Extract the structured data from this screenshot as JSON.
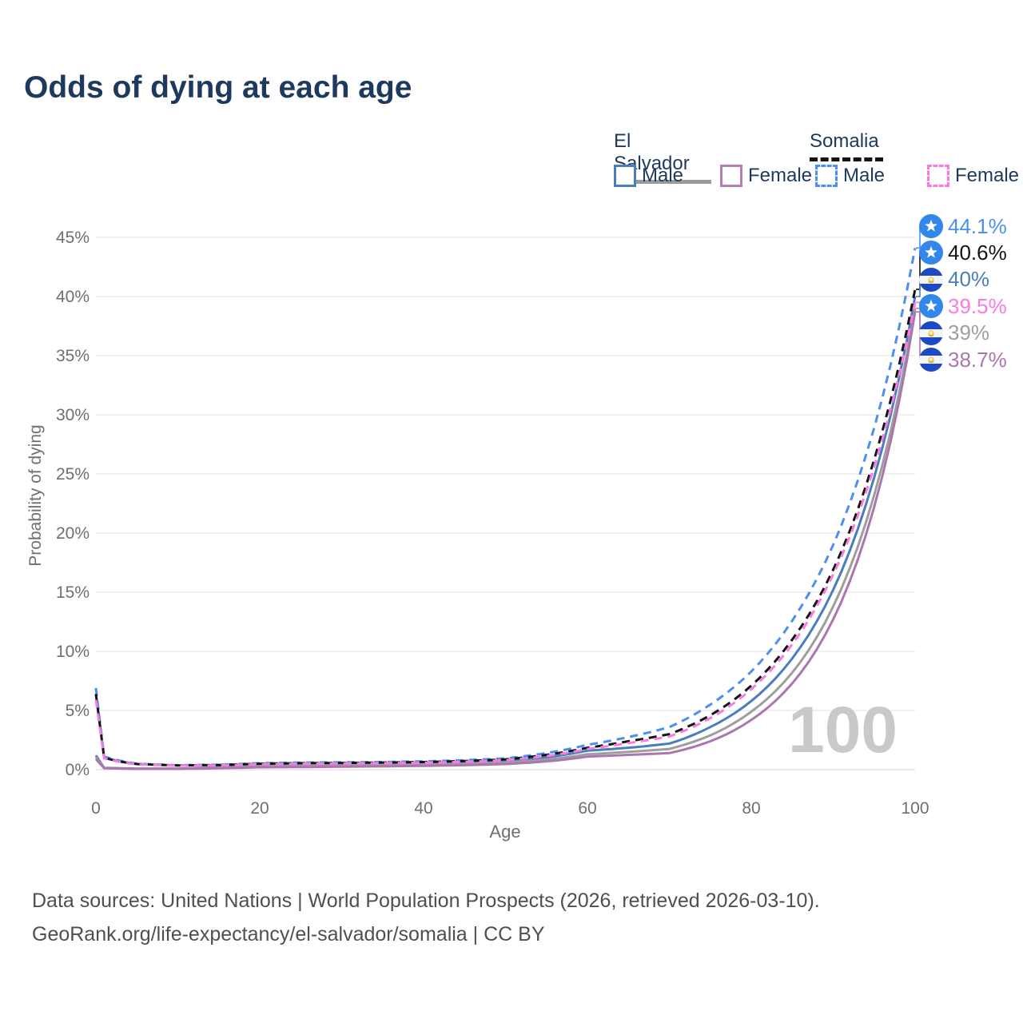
{
  "title": "Odds of dying at each age",
  "legend": {
    "groups": [
      {
        "name": "El Salvador",
        "style": "solid",
        "items": [
          {
            "label": "Male",
            "color": "#4a7dbd"
          },
          {
            "label": "Female",
            "color": "#b57fb5"
          }
        ]
      },
      {
        "name": "Somalia",
        "style": "dashed",
        "items": [
          {
            "label": "Male",
            "color": "#4a90f4"
          },
          {
            "label": "Female",
            "color": "#fb7ae0"
          }
        ]
      }
    ]
  },
  "chart_data": {
    "type": "line",
    "title": "Odds of dying at each age",
    "xlabel": "Age",
    "ylabel": "Probability of dying",
    "xlim": [
      0,
      100
    ],
    "ylim": [
      0,
      45
    ],
    "xticks": [
      0,
      20,
      40,
      60,
      80,
      100
    ],
    "yticks": [
      0,
      5,
      10,
      15,
      20,
      25,
      30,
      35,
      40,
      45
    ],
    "ytick_suffix": "%",
    "grid": true,
    "legend_position": "top-right",
    "watermark": "100",
    "x": [
      0,
      1,
      5,
      10,
      15,
      20,
      25,
      30,
      35,
      40,
      45,
      50,
      55,
      60,
      65,
      70,
      75,
      80,
      85,
      90,
      95,
      100
    ],
    "series": [
      {
        "name": "Somalia Male",
        "country": "somalia",
        "style": "dashed",
        "color": "#4a90f4",
        "end_label": "44.1%",
        "values": [
          6.9,
          1.1,
          0.5,
          0.38,
          0.42,
          0.55,
          0.6,
          0.62,
          0.65,
          0.7,
          0.8,
          0.95,
          1.4,
          2.1,
          2.75,
          3.6,
          5.5,
          8.3,
          12.6,
          19.0,
          28.9,
          44.1
        ]
      },
      {
        "name": "Somalia",
        "country": "somalia",
        "style": "dashed",
        "color": "#141414",
        "end_label": "40.6%",
        "values": [
          6.4,
          1.0,
          0.47,
          0.36,
          0.39,
          0.5,
          0.55,
          0.57,
          0.6,
          0.64,
          0.73,
          0.87,
          1.25,
          1.85,
          2.4,
          3.0,
          4.6,
          7.1,
          11.0,
          16.9,
          26.2,
          40.6
        ]
      },
      {
        "name": "El Salvador Male",
        "country": "el-salvador",
        "style": "solid",
        "color": "#4a7dbd",
        "end_label": "40%",
        "values": [
          1.2,
          0.15,
          0.09,
          0.09,
          0.2,
          0.45,
          0.5,
          0.5,
          0.52,
          0.55,
          0.62,
          0.75,
          1.05,
          1.6,
          1.85,
          2.2,
          3.6,
          5.8,
          9.4,
          15.2,
          24.7,
          40.0
        ]
      },
      {
        "name": "Somalia Female",
        "country": "somalia",
        "style": "dashed",
        "color": "#fb7ae0",
        "end_label": "39.5%",
        "values": [
          5.9,
          0.95,
          0.44,
          0.34,
          0.36,
          0.45,
          0.5,
          0.52,
          0.55,
          0.58,
          0.66,
          0.8,
          1.15,
          1.75,
          2.25,
          2.8,
          4.35,
          6.8,
          10.6,
          16.5,
          25.6,
          39.5
        ]
      },
      {
        "name": "El Salvador",
        "country": "el-salvador",
        "style": "solid",
        "color": "#9e9e9e",
        "end_label": "39%",
        "values": [
          1.05,
          0.13,
          0.08,
          0.08,
          0.16,
          0.35,
          0.38,
          0.39,
          0.41,
          0.44,
          0.5,
          0.6,
          0.85,
          1.3,
          1.5,
          1.75,
          2.9,
          4.9,
          8.2,
          13.8,
          23.2,
          39.0
        ]
      },
      {
        "name": "El Salvador Female",
        "country": "el-salvador",
        "style": "solid",
        "color": "#ab76ad",
        "end_label": "38.7%",
        "values": [
          0.9,
          0.12,
          0.07,
          0.07,
          0.12,
          0.2,
          0.22,
          0.25,
          0.28,
          0.32,
          0.38,
          0.47,
          0.7,
          1.1,
          1.25,
          1.4,
          2.4,
          4.2,
          7.3,
          12.7,
          22.2,
          38.7
        ]
      }
    ]
  },
  "footer": {
    "line1": "Data sources: United Nations | World Population Prospects (2026, retrieved 2026-03-10).",
    "line2": "GeoRank.org/life-expectancy/el-salvador/somalia | CC BY"
  }
}
